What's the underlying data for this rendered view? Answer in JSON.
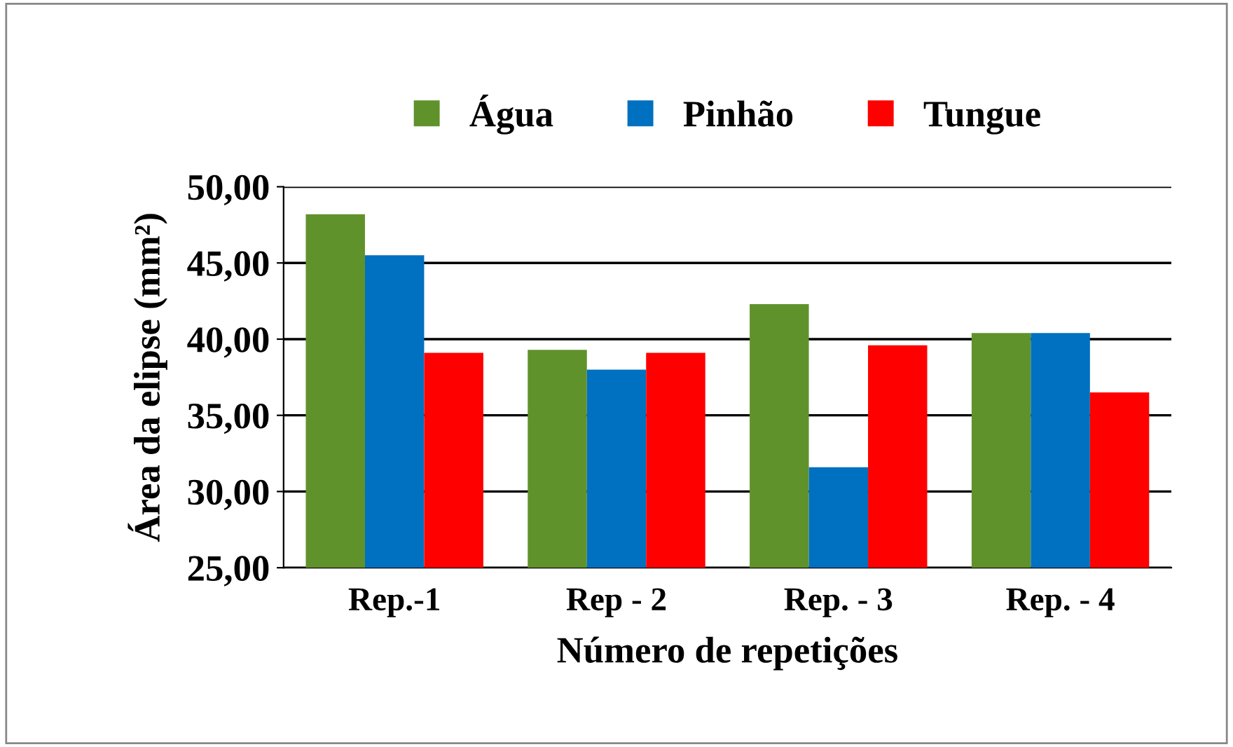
{
  "chart_data": {
    "type": "bar",
    "xlabel": "Número de repetições",
    "ylabel": "Área da elipse (mm²)",
    "categories": [
      "Rep.-1",
      "Rep - 2",
      "Rep. - 3",
      "Rep. - 4"
    ],
    "series": [
      {
        "name": "Água",
        "color": "#60922c",
        "values": [
          48.2,
          39.3,
          42.3,
          40.4
        ]
      },
      {
        "name": "Pinhão",
        "color": "#0070c0",
        "values": [
          45.5,
          38.0,
          31.6,
          40.4
        ]
      },
      {
        "name": "Tungue",
        "color": "#ff0000",
        "values": [
          39.1,
          39.1,
          39.6,
          36.5
        ]
      }
    ],
    "ylim": [
      25,
      50
    ],
    "yticks": [
      {
        "value": 25,
        "label": "25,00"
      },
      {
        "value": 30,
        "label": "30,00"
      },
      {
        "value": 35,
        "label": "35,00"
      },
      {
        "value": 40,
        "label": "40,00"
      },
      {
        "value": 45,
        "label": "45,00"
      },
      {
        "value": 50,
        "label": "50,00"
      }
    ],
    "grid": "y",
    "legend": "top"
  }
}
